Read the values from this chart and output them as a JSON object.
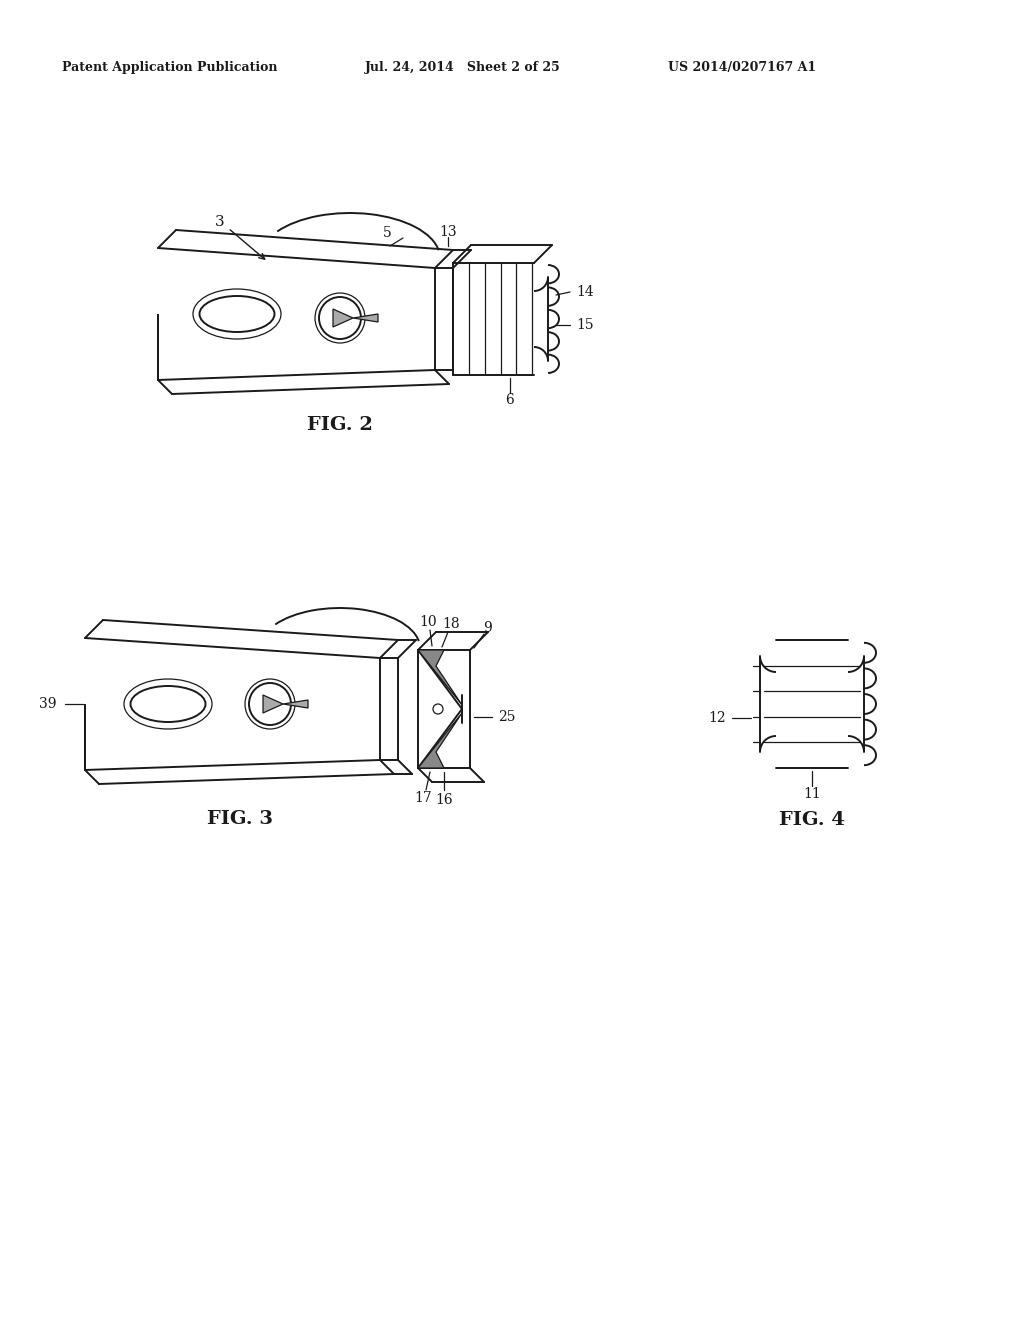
{
  "bg_color": "#ffffff",
  "header_left": "Patent Application Publication",
  "header_mid": "Jul. 24, 2014   Sheet 2 of 25",
  "header_right": "US 2014/0207167 A1",
  "fig2_label": "FIG. 2",
  "fig3_label": "FIG. 3",
  "fig4_label": "FIG. 4",
  "line_color": "#1a1a1a",
  "lw": 1.4,
  "tlw": 0.9
}
